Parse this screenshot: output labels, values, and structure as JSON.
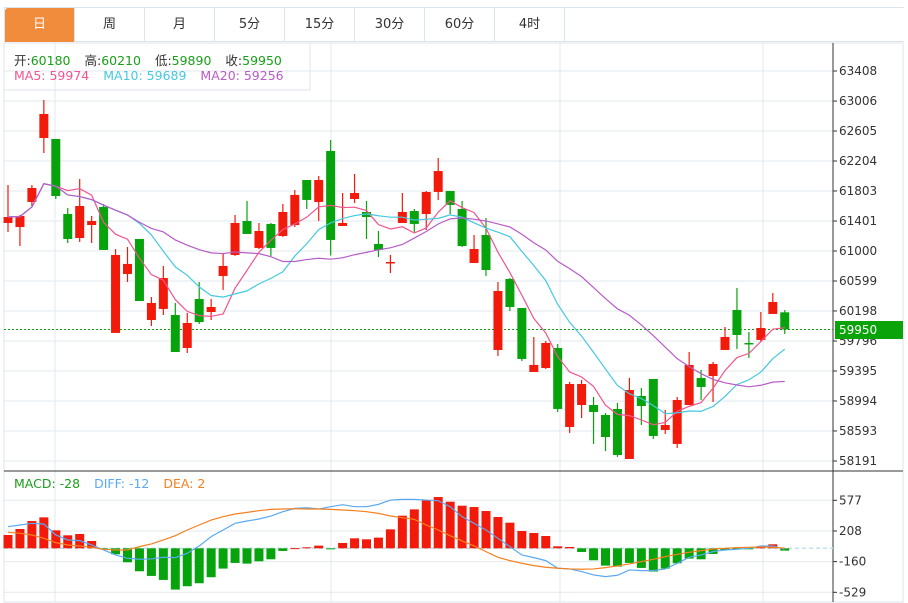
{
  "tabs": [
    {
      "label": "日",
      "active": true
    },
    {
      "label": "周"
    },
    {
      "label": "月"
    },
    {
      "label": "5分"
    },
    {
      "label": "15分"
    },
    {
      "label": "30分"
    },
    {
      "label": "60分"
    },
    {
      "label": "4时"
    }
  ],
  "ohlc_legend": {
    "open_label": "开:",
    "open": "60180",
    "high_label": "高:",
    "high": "60210",
    "low_label": "低:",
    "low": "59890",
    "close_label": "收:",
    "close": "59950"
  },
  "ma_legend": {
    "ma5": "MA5: 59974",
    "ma10": "MA10: 59689",
    "ma20": "MA20: 59256"
  },
  "macd_legend": {
    "macd": "MACD: -28",
    "diff": "DIFF: -12",
    "dea": "DEA: 2"
  },
  "current_price": "59950",
  "colors": {
    "up": "#f21b0b",
    "down": "#06a30c",
    "ma5": "#f2558f",
    "ma10": "#45c9e0",
    "ma20": "#b85cc8",
    "diff": "#5aa9f2",
    "dea": "#f5801f",
    "active_tab": "#f08c3c",
    "grid": "#e3e9ef"
  },
  "chart_data": {
    "type": "candlestick",
    "price_axis_ticks": [
      63408,
      63006,
      62605,
      62204,
      61803,
      61401,
      61000,
      60599,
      60198,
      59796,
      59395,
      58994,
      58593,
      58191
    ],
    "macd_axis_ticks": [
      577,
      208,
      -160,
      -529
    ],
    "candles_ohlc": [
      [
        61375,
        61883,
        61254,
        61455
      ],
      [
        61321,
        61482,
        61067,
        61469
      ],
      [
        61656,
        61883,
        61602,
        61843
      ],
      [
        62512,
        63020,
        62311,
        62833
      ],
      [
        62499,
        62499,
        61696,
        61736
      ],
      [
        61495,
        61576,
        61107,
        61161
      ],
      [
        61174,
        61963,
        61121,
        61602
      ],
      [
        61348,
        61469,
        61107,
        61401
      ],
      [
        61589,
        61629,
        61014,
        61014
      ],
      [
        59904,
        61027,
        59904,
        60947
      ],
      [
        60693,
        61054,
        60586,
        60827
      ],
      [
        61161,
        61161,
        60331,
        60331
      ],
      [
        60077,
        60385,
        59997,
        60305
      ],
      [
        60225,
        60800,
        60144,
        60639
      ],
      [
        60144,
        60305,
        59649,
        59649
      ],
      [
        59703,
        60171,
        59636,
        60037
      ],
      [
        60358,
        60586,
        60024,
        60050
      ],
      [
        60184,
        60358,
        60077,
        60251
      ],
      [
        60666,
        60974,
        60479,
        60800
      ],
      [
        60947,
        61482,
        60934,
        61375
      ],
      [
        61401,
        61670,
        61228,
        61228
      ],
      [
        61041,
        61375,
        61027,
        61268
      ],
      [
        61362,
        61375,
        60934,
        61041
      ],
      [
        61201,
        61629,
        61188,
        61522
      ],
      [
        61348,
        61816,
        61321,
        61750
      ],
      [
        61950,
        61950,
        61562,
        61683
      ],
      [
        61656,
        62004,
        61401,
        61950
      ],
      [
        62338,
        62485,
        60940,
        61148
      ],
      [
        61335,
        61776,
        61335,
        61375
      ],
      [
        61696,
        62030,
        61642,
        61776
      ],
      [
        61522,
        61670,
        61161,
        61455
      ],
      [
        61094,
        61268,
        60920,
        61014
      ],
      [
        60840,
        60947,
        60706,
        60853
      ],
      [
        61375,
        61776,
        61375,
        61522
      ],
      [
        61535,
        61562,
        61254,
        61362
      ],
      [
        61495,
        61803,
        61281,
        61790
      ],
      [
        61790,
        62244,
        61683,
        62070
      ],
      [
        61803,
        61803,
        61495,
        61616
      ],
      [
        61562,
        61670,
        61054,
        61067
      ],
      [
        60840,
        61214,
        60840,
        61027
      ],
      [
        61214,
        61442,
        60666,
        60746
      ],
      [
        59676,
        60586,
        59596,
        60465
      ],
      [
        60626,
        60639,
        60198,
        60251
      ],
      [
        60238,
        60238,
        59529,
        59556
      ],
      [
        59382,
        59850,
        59382,
        59476
      ],
      [
        59435,
        59797,
        59422,
        59770
      ],
      [
        59703,
        59756,
        58847,
        58887
      ],
      [
        58646,
        59248,
        58566,
        59221
      ],
      [
        58940,
        59275,
        58766,
        59221
      ],
      [
        58940,
        59047,
        58419,
        58847
      ],
      [
        58807,
        58833,
        58325,
        58512
      ],
      [
        58887,
        58967,
        58245,
        58271
      ],
      [
        58218,
        59302,
        58218,
        59141
      ],
      [
        59061,
        59168,
        58673,
        58927
      ],
      [
        59288,
        59288,
        58486,
        58526
      ],
      [
        58606,
        58873,
        58552,
        58673
      ],
      [
        58419,
        59047,
        58365,
        59007
      ],
      [
        58940,
        59650,
        58940,
        59476
      ],
      [
        59302,
        59409,
        59007,
        59181
      ],
      [
        59328,
        59516,
        58980,
        59489
      ],
      [
        59676,
        59984,
        59676,
        59850
      ],
      [
        60211,
        60506,
        59690,
        59877
      ],
      [
        59770,
        59917,
        59569,
        59756
      ],
      [
        59810,
        60184,
        59783,
        59970
      ],
      [
        60158,
        60438,
        60158,
        60318
      ],
      [
        60180,
        60210,
        59890,
        59950
      ]
    ],
    "macd_hist": [
      160,
      232,
      328,
      372,
      216,
      156,
      172,
      88,
      -4,
      -72,
      -168,
      -276,
      -332,
      -380,
      -496,
      -456,
      -420,
      -348,
      -244,
      -176,
      -184,
      -156,
      -132,
      -32,
      2,
      12,
      32,
      -8,
      64,
      120,
      108,
      128,
      228,
      392,
      468,
      576,
      616,
      560,
      512,
      496,
      448,
      376,
      308,
      208,
      184,
      148,
      24,
      16,
      -44,
      -144,
      -208,
      -220,
      -176,
      -236,
      -280,
      -244,
      -180,
      -124,
      -132,
      -68,
      -20,
      -12,
      -8,
      12,
      48,
      -28
    ],
    "diff": [
      260,
      280,
      300,
      292,
      160,
      100,
      92,
      40,
      -20,
      -80,
      -120,
      -132,
      -128,
      -108,
      -112,
      -60,
      28,
      140,
      220,
      300,
      328,
      352,
      388,
      440,
      480,
      488,
      472,
      500,
      524,
      500,
      500,
      528,
      580,
      588,
      588,
      580,
      572,
      500,
      380,
      300,
      220,
      120,
      20,
      -80,
      -112,
      -148,
      -240,
      -248,
      -280,
      -320,
      -340,
      -324,
      -260,
      -268,
      -268,
      -248,
      -180,
      -108,
      -80,
      -40,
      -20,
      -12,
      0,
      28,
      28,
      -12
    ],
    "dea": [
      192,
      180,
      160,
      120,
      68,
      40,
      28,
      12,
      -12,
      -20,
      -20,
      20,
      52,
      100,
      152,
      220,
      280,
      340,
      380,
      412,
      432,
      452,
      468,
      472,
      476,
      472,
      472,
      468,
      460,
      452,
      440,
      420,
      388,
      368,
      348,
      280,
      220,
      152,
      88,
      28,
      -40,
      -108,
      -148,
      -180,
      -208,
      -228,
      -240,
      -248,
      -252,
      -248,
      -232,
      -212,
      -188,
      -160,
      -132,
      -100,
      -72,
      -48,
      -28,
      -8,
      0,
      8,
      12,
      16,
      12,
      2
    ]
  }
}
